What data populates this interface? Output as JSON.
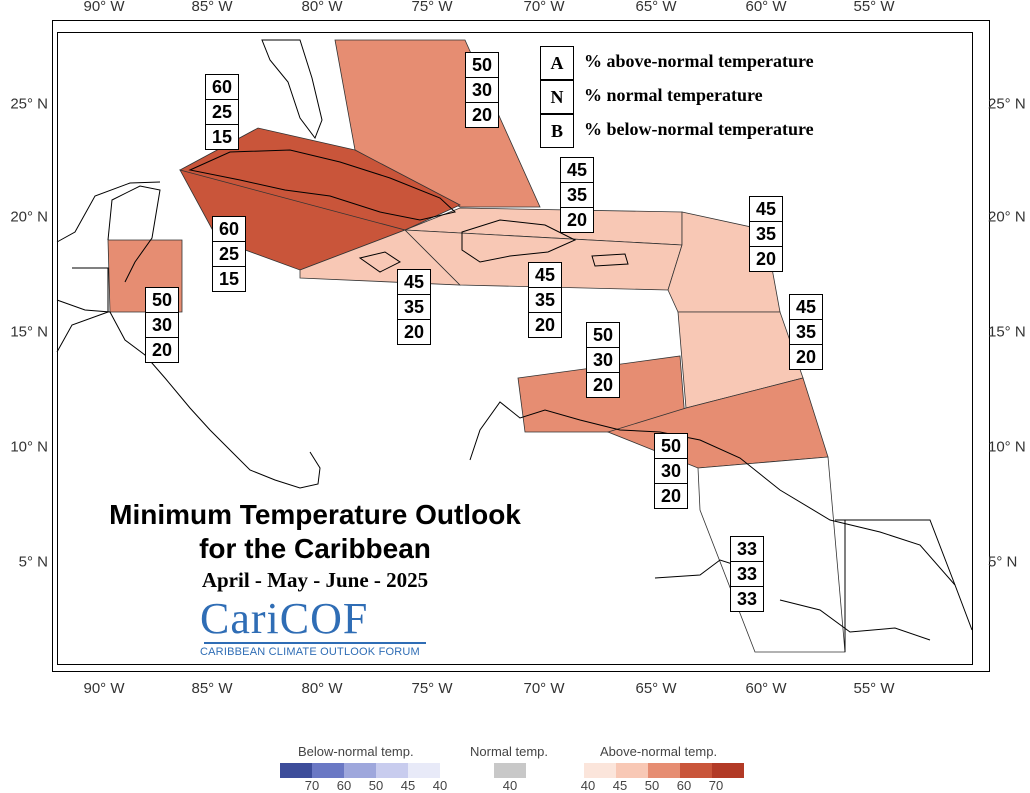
{
  "title": "Minimum Temperature Outlook",
  "subtitle": "for the Caribbean",
  "season": "April - May - June - 2025",
  "logo": {
    "word": "CariCOF",
    "tagline": "CARIBBEAN CLIMATE OUTLOOK FORUM"
  },
  "axes": {
    "longitude_labels": [
      "90° W",
      "85° W",
      "80° W",
      "75° W",
      "70° W",
      "65° W",
      "60° W",
      "55° W"
    ],
    "latitude_labels": [
      "25° N",
      "20° N",
      "15° N",
      "10° N",
      "5° N"
    ]
  },
  "key": [
    {
      "letter": "A",
      "text": "% above-normal temperature"
    },
    {
      "letter": "N",
      "text": "% normal temperature"
    },
    {
      "letter": "B",
      "text": "% below-normal temperature"
    }
  ],
  "regions": [
    {
      "id": "bahamas",
      "above": "50",
      "normal": "30",
      "below": "20",
      "fill": "#e68d72"
    },
    {
      "id": "cuba-northwest",
      "above": "60",
      "normal": "25",
      "below": "15",
      "fill": "#c9553a"
    },
    {
      "id": "cuba-southeast",
      "above": "60",
      "normal": "25",
      "below": "15",
      "fill": "#c9553a"
    },
    {
      "id": "belize",
      "above": "50",
      "normal": "30",
      "below": "20",
      "fill": "#e68d72"
    },
    {
      "id": "jamaica",
      "above": "45",
      "normal": "35",
      "below": "20",
      "fill": "#f8c8b5"
    },
    {
      "id": "hispaniola-north",
      "above": "45",
      "normal": "35",
      "below": "20",
      "fill": "#f8c8b5"
    },
    {
      "id": "hispaniola-south",
      "above": "45",
      "normal": "35",
      "below": "20",
      "fill": "#f8c8b5"
    },
    {
      "id": "leeward-islands",
      "above": "45",
      "normal": "35",
      "below": "20",
      "fill": "#f8c8b5"
    },
    {
      "id": "windward-islands",
      "above": "45",
      "normal": "35",
      "below": "20",
      "fill": "#f8c8b5"
    },
    {
      "id": "abc-islands",
      "above": "50",
      "normal": "30",
      "below": "20",
      "fill": "#e68d72"
    },
    {
      "id": "trinidad-barbados",
      "above": "50",
      "normal": "30",
      "below": "20",
      "fill": "#e68d72"
    },
    {
      "id": "guianas",
      "above": "33",
      "normal": "33",
      "below": "33",
      "fill": "#ffffff"
    }
  ],
  "legend": {
    "below_title": "Below-normal temp.",
    "normal_title": "Normal temp.",
    "above_title": "Above-normal temp.",
    "below_labels": [
      "70",
      "60",
      "50",
      "45",
      "40"
    ],
    "normal_labels": [
      "40"
    ],
    "above_labels": [
      "40",
      "45",
      "50",
      "60",
      "70"
    ],
    "below_colors": [
      "#3d4d9a",
      "#6a78c4",
      "#9ea7dc",
      "#c8ccee",
      "#e8eaf8"
    ],
    "normal_colors": [
      "#c8c8c8"
    ],
    "above_colors": [
      "#fbe5db",
      "#f8c8b5",
      "#e68d72",
      "#c9553a",
      "#b23a26"
    ]
  }
}
